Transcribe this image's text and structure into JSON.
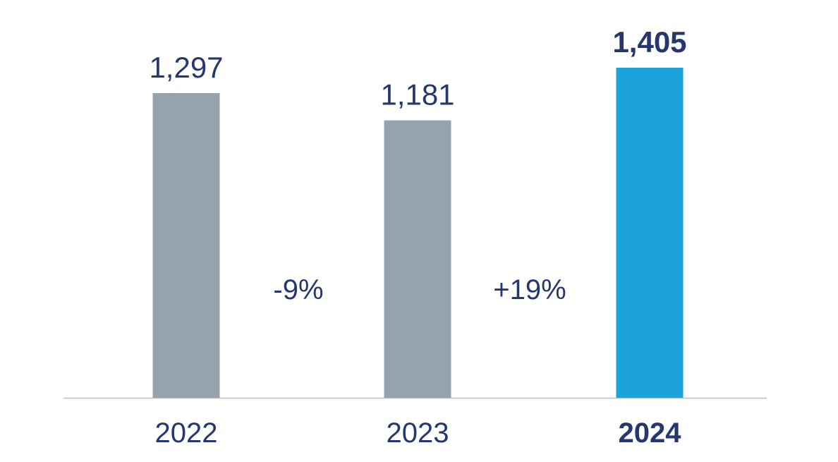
{
  "chart_data": {
    "type": "bar",
    "categories": [
      "2022",
      "2023",
      "2024"
    ],
    "values": [
      1297,
      1181,
      1405
    ],
    "value_labels": [
      "1,297",
      "1,181",
      "1,405"
    ],
    "highlight_index": 2,
    "changes": [
      {
        "label": "-9%"
      },
      {
        "label": "+19%"
      }
    ],
    "title": "",
    "xlabel": "",
    "ylabel": "",
    "ylim": [
      0,
      1405
    ],
    "grid": false,
    "legend": "none",
    "colors": {
      "bar": "#97a3ac",
      "highlight_bar": "#1ca3dc",
      "text": "#26366f",
      "axis": "#b9bfc5"
    }
  }
}
